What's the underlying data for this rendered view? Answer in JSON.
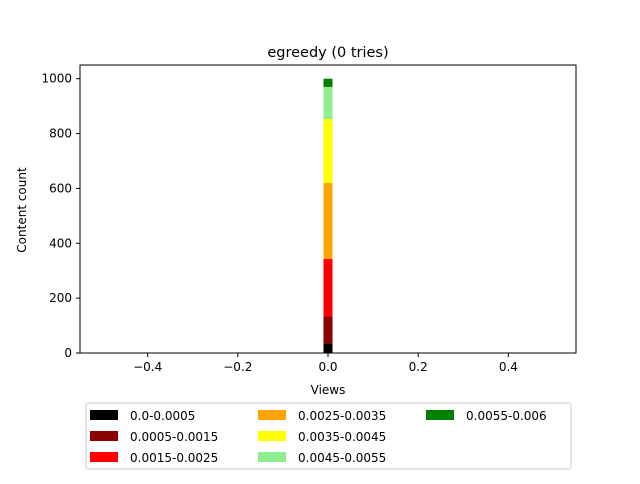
{
  "chart_data": {
    "type": "bar",
    "stacked": true,
    "title": "egreedy (0 tries)",
    "xlabel": "Views",
    "ylabel": "Content count",
    "xlim": [
      -0.55,
      0.55
    ],
    "ylim": [
      0,
      1050
    ],
    "xticks": [
      -0.4,
      -0.2,
      0.0,
      0.2,
      0.4
    ],
    "xtick_labels": [
      "−0.4",
      "−0.2",
      "0.0",
      "0.2",
      "0.4"
    ],
    "yticks": [
      0,
      200,
      400,
      600,
      800,
      1000
    ],
    "ytick_labels": [
      "0",
      "200",
      "400",
      "600",
      "800",
      "1000"
    ],
    "grid": false,
    "legend_position": "bottom",
    "categories": [
      "0"
    ],
    "x": [
      0
    ],
    "bar_width": 0.02,
    "series": [
      {
        "name": "0.0-0.0005",
        "color": "#000000",
        "values": [
          35
        ]
      },
      {
        "name": "0.0005-0.0015",
        "color": "#8b0000",
        "values": [
          98
        ]
      },
      {
        "name": "0.0015-0.0025",
        "color": "#ff0000",
        "values": [
          210
        ]
      },
      {
        "name": "0.0025-0.0035",
        "color": "#ffa500",
        "values": [
          277
        ]
      },
      {
        "name": "0.0035-0.0045",
        "color": "#ffff00",
        "values": [
          233
        ]
      },
      {
        "name": "0.0045-0.0055",
        "color": "#90ee90",
        "values": [
          117
        ]
      },
      {
        "name": "0.0055-0.006",
        "color": "#008000",
        "values": [
          30
        ]
      }
    ]
  }
}
